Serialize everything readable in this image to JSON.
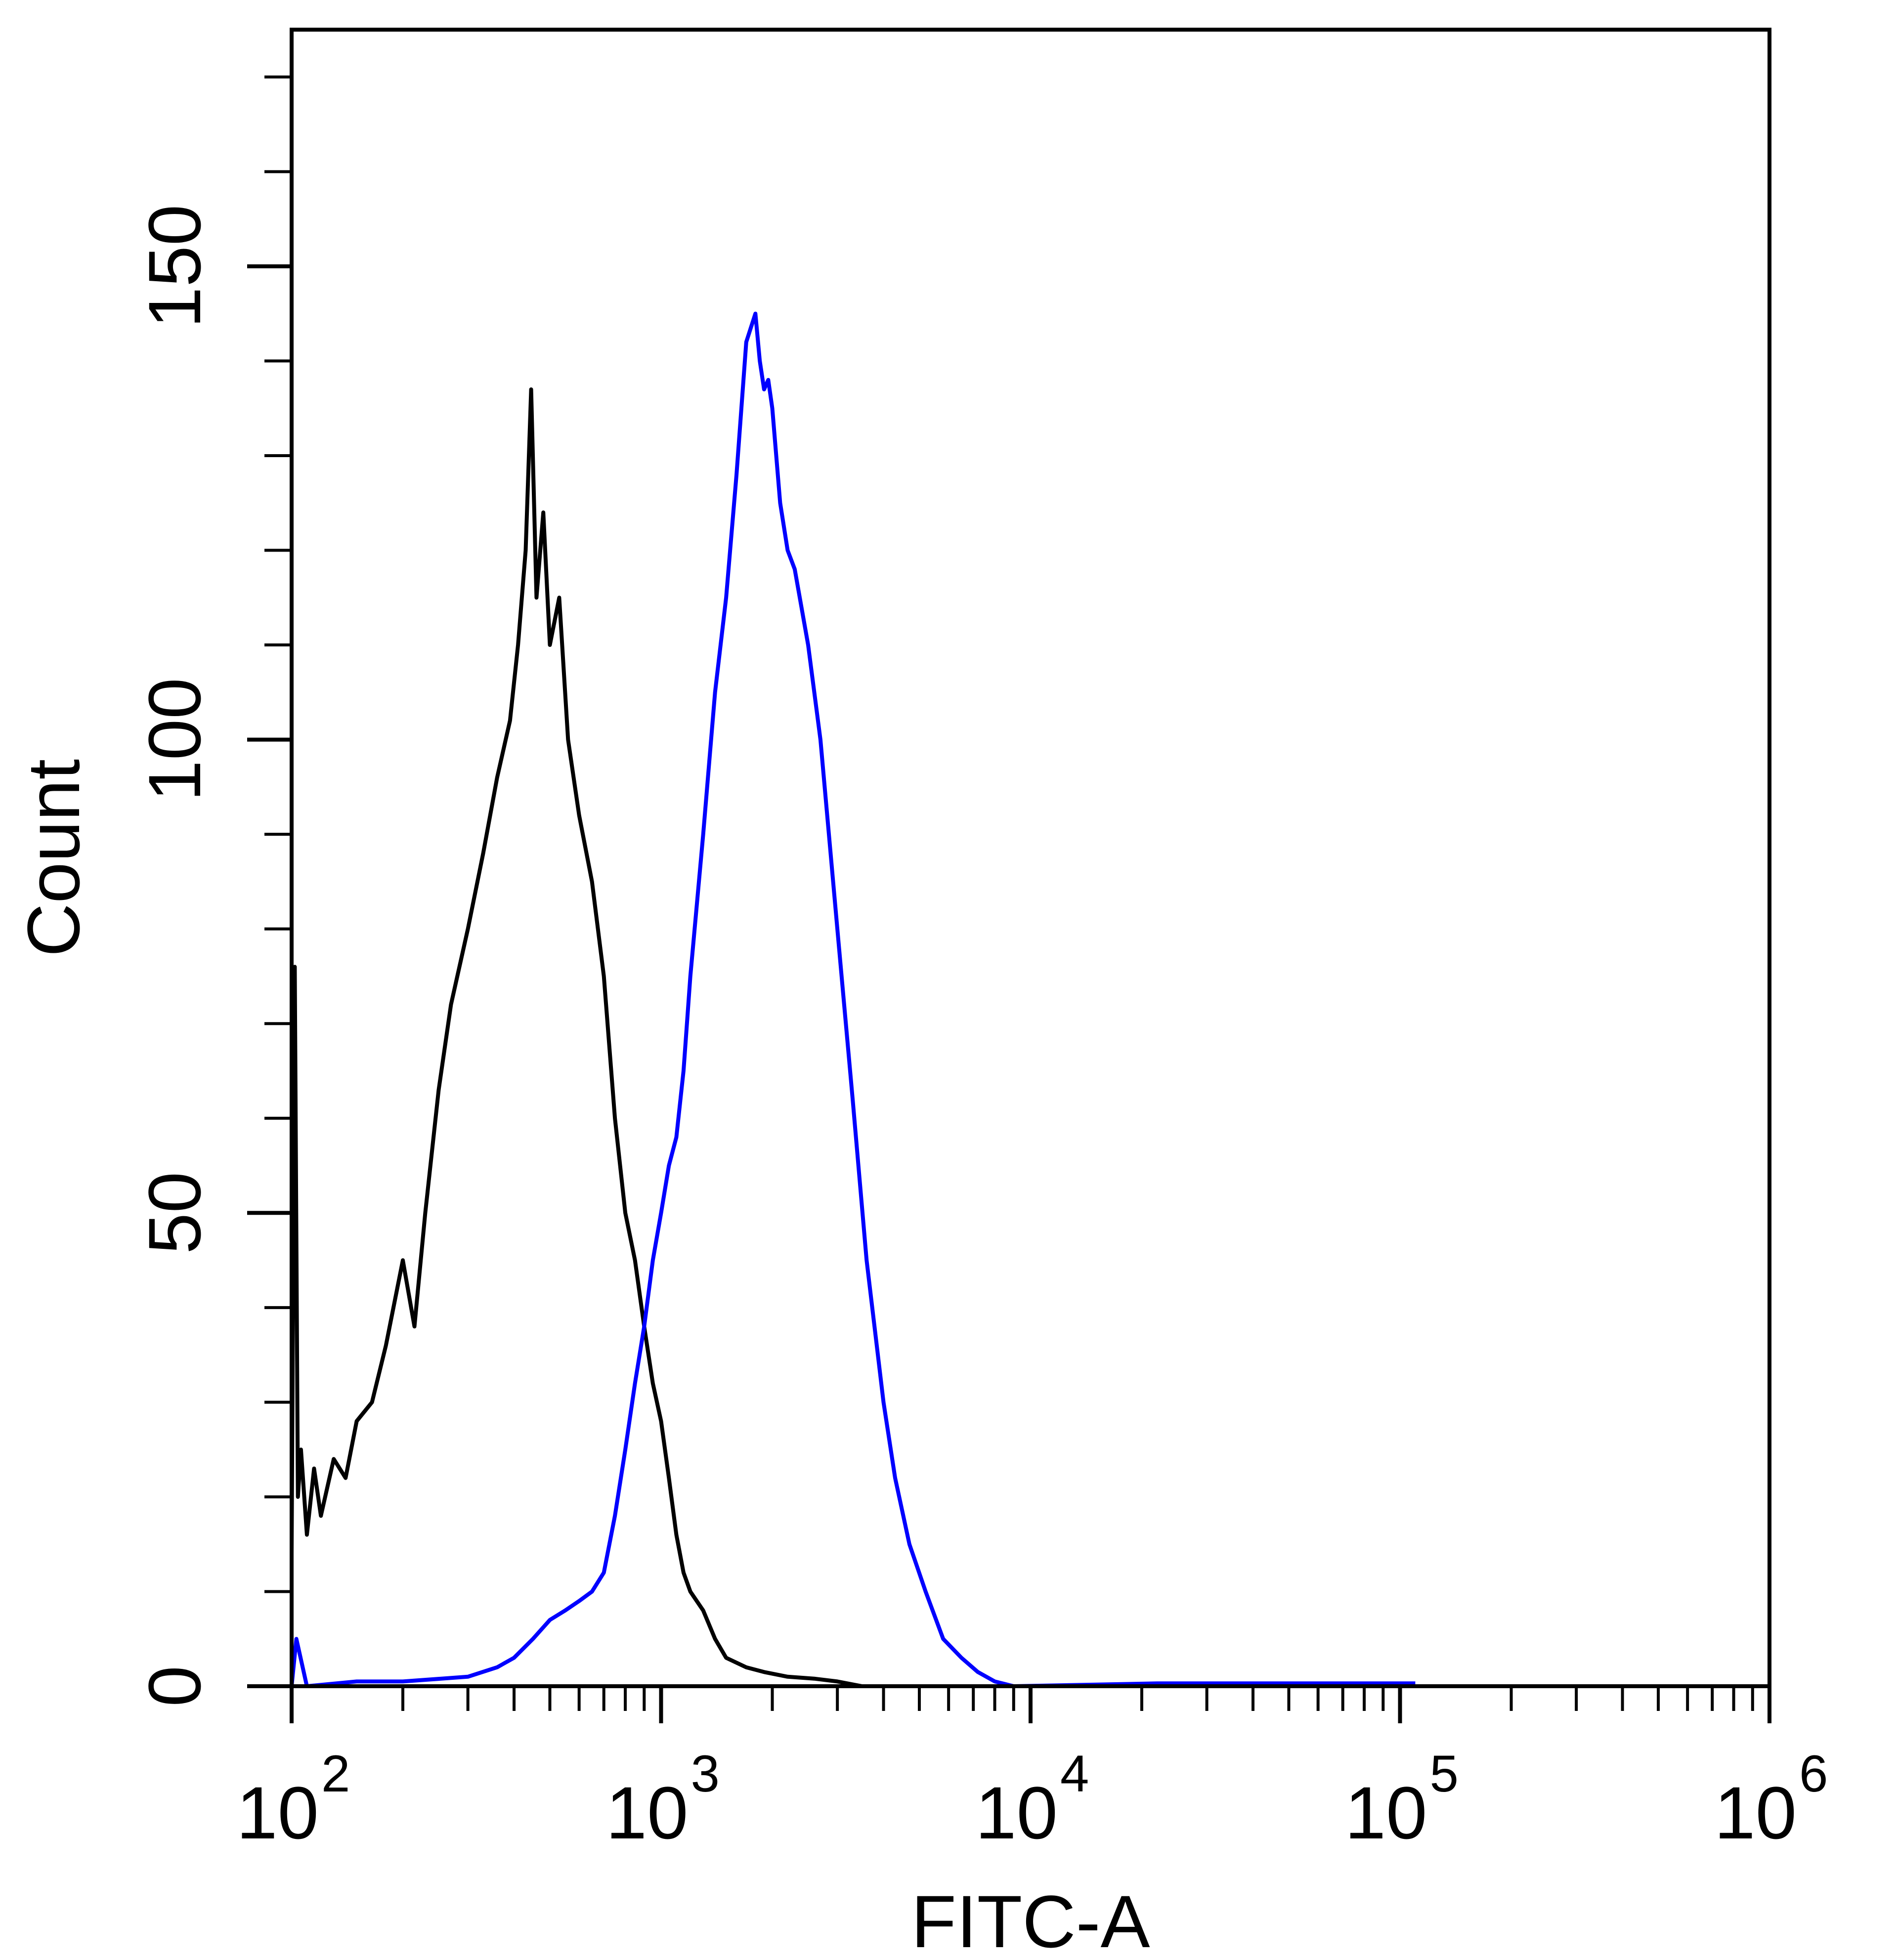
{
  "chart_data": {
    "type": "line",
    "xlabel": "FITC-A",
    "ylabel": "Count",
    "x_scale": "log",
    "xlim": [
      100,
      1000000
    ],
    "ylim": [
      0,
      175
    ],
    "x_ticks": [
      {
        "base": "10",
        "exp": "2",
        "value": 100
      },
      {
        "base": "10",
        "exp": "3",
        "value": 1000
      },
      {
        "base": "10",
        "exp": "4",
        "value": 10000
      },
      {
        "base": "10",
        "exp": "5",
        "value": 100000
      },
      {
        "base": "10",
        "exp": "6",
        "value": 1000000
      }
    ],
    "y_ticks": [
      {
        "label": "0",
        "value": 0
      },
      {
        "label": "50",
        "value": 50
      },
      {
        "label": "100",
        "value": 100
      },
      {
        "label": "150",
        "value": 150
      }
    ],
    "y_minor_ticks": [
      10,
      20,
      30,
      40,
      60,
      70,
      80,
      90,
      110,
      120,
      130,
      140,
      160,
      170
    ],
    "grid": false,
    "series": [
      {
        "color": "#000000",
        "x": [
          100,
          102,
          104,
          106,
          110,
          115,
          120,
          130,
          140,
          150,
          165,
          180,
          200,
          215,
          230,
          250,
          270,
          300,
          330,
          360,
          390,
          410,
          430,
          445,
          460,
          480,
          500,
          530,
          560,
          600,
          650,
          700,
          750,
          800,
          850,
          900,
          950,
          1000,
          1050,
          1100,
          1150,
          1200,
          1300,
          1400,
          1500,
          1700,
          1900,
          2200,
          2600,
          3000,
          3500
        ],
        "y": [
          14,
          76,
          20,
          25,
          16,
          23,
          18,
          24,
          22,
          28,
          30,
          36,
          45,
          38,
          50,
          63,
          72,
          80,
          88,
          96,
          102,
          110,
          120,
          137,
          115,
          124,
          110,
          115,
          100,
          92,
          85,
          75,
          60,
          50,
          45,
          38,
          32,
          28,
          22,
          16,
          12,
          10,
          8,
          5,
          3,
          2,
          1.5,
          1,
          0.8,
          0.5,
          0
        ]
      },
      {
        "color": "#0000ff",
        "x": [
          100,
          103,
          110,
          150,
          200,
          300,
          360,
          400,
          450,
          500,
          550,
          600,
          650,
          700,
          750,
          800,
          850,
          900,
          950,
          1000,
          1050,
          1100,
          1150,
          1200,
          1300,
          1400,
          1500,
          1600,
          1700,
          1800,
          1850,
          1900,
          1950,
          2000,
          2100,
          2200,
          2300,
          2500,
          2700,
          3000,
          3300,
          3600,
          4000,
          4300,
          4700,
          5200,
          5800,
          6500,
          7200,
          8000,
          9000,
          22000,
          110000
        ],
        "y": [
          0,
          5,
          0,
          0.5,
          0.5,
          1,
          2,
          3,
          5,
          7,
          8,
          9,
          10,
          12,
          18,
          25,
          32,
          38,
          45,
          50,
          55,
          58,
          65,
          75,
          90,
          105,
          115,
          128,
          142,
          145,
          140,
          137,
          138,
          135,
          125,
          120,
          118,
          110,
          100,
          80,
          62,
          45,
          30,
          22,
          15,
          10,
          5,
          3,
          1.5,
          0.5,
          0,
          0.3,
          0.3
        ]
      }
    ]
  }
}
